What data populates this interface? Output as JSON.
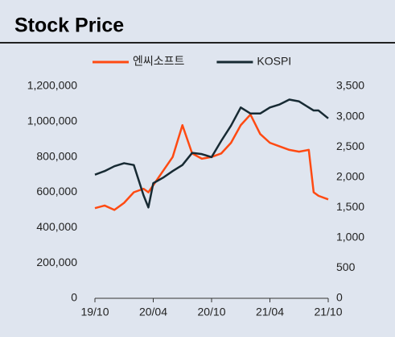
{
  "chart_data": {
    "type": "line",
    "title": "Stock Price",
    "x": [
      0,
      1,
      2,
      3,
      4,
      5,
      5.5,
      6,
      7,
      8,
      9,
      10,
      11,
      12,
      13,
      14,
      15,
      16,
      17,
      18,
      19,
      20,
      21,
      22,
      22.5,
      23,
      24
    ],
    "xlim": [
      0,
      24
    ],
    "xticks": [
      {
        "value": 0,
        "label": "19/10"
      },
      {
        "value": 6,
        "label": "20/04"
      },
      {
        "value": 12,
        "label": "20/10"
      },
      {
        "value": 18,
        "label": "21/04"
      },
      {
        "value": 24,
        "label": "21/10"
      }
    ],
    "ylim": [
      0,
      1200000
    ],
    "yticks": [
      0,
      {
        "value": 200000,
        "label": "200,000"
      },
      {
        "value": 400000,
        "label": "400,000"
      },
      {
        "value": 600000,
        "label": "600,000"
      },
      {
        "value": 800000,
        "label": "800,000"
      },
      {
        "value": 1000000,
        "label": "1,000,000"
      },
      {
        "value": 1200000,
        "label": "1,200,000"
      }
    ],
    "y2lim": [
      0,
      3500
    ],
    "y2ticks": [
      0,
      500,
      {
        "value": 1000,
        "label": "1,000"
      },
      {
        "value": 1500,
        "label": "1,500"
      },
      {
        "value": 2000,
        "label": "2,000"
      },
      {
        "value": 2500,
        "label": "2,500"
      },
      {
        "value": 3000,
        "label": "3,000"
      },
      {
        "value": 3500,
        "label": "3,500"
      }
    ],
    "grid": false,
    "legend": "top",
    "series": [
      {
        "name": "엔씨소프트",
        "color": "#ff4a12",
        "values": [
          510000,
          525000,
          500000,
          540000,
          600000,
          620000,
          600000,
          640000,
          720000,
          800000,
          980000,
          820000,
          790000,
          800000,
          820000,
          880000,
          980000,
          1040000,
          930000,
          880000,
          860000,
          840000,
          830000,
          840000,
          600000,
          580000,
          560000
        ]
      },
      {
        "name": "KOSPI",
        "color": "#172a33",
        "axis": "y2",
        "values": [
          2040,
          2100,
          2180,
          2230,
          2200,
          1700,
          1500,
          1900,
          1990,
          2100,
          2200,
          2400,
          2380,
          2330,
          2600,
          2850,
          3150,
          3050,
          3050,
          3150,
          3200,
          3280,
          3250,
          3150,
          3100,
          3100,
          2970
        ]
      }
    ]
  }
}
